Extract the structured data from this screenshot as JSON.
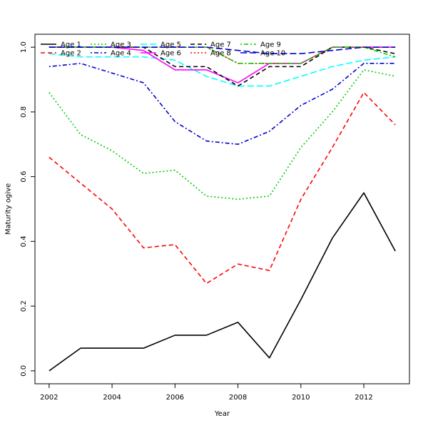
{
  "chart_data": {
    "type": "line",
    "title": "",
    "xlabel": "Year",
    "ylabel": "Maturity ogive",
    "xlim": [
      2001.55,
      2013.45
    ],
    "ylim": [
      -0.04,
      1.04
    ],
    "x_ticks": [
      2002,
      2004,
      2006,
      2008,
      2010,
      2012
    ],
    "y_ticks": [
      0.0,
      0.2,
      0.4,
      0.6,
      0.8,
      1.0
    ],
    "x_tick_labels": [
      "2002",
      "2004",
      "2006",
      "2008",
      "2010",
      "2012"
    ],
    "y_tick_labels": [
      "0.0",
      "0.2",
      "0.4",
      "0.6",
      "0.8",
      "1.0"
    ],
    "legend_placement": "top-left",
    "x": [
      2002,
      2003,
      2004,
      2005,
      2006,
      2007,
      2008,
      2009,
      2010,
      2011,
      2012,
      2013
    ],
    "series": [
      {
        "name": "Age 1",
        "color": "#000000",
        "dash": "solid",
        "values": [
          0.0,
          0.07,
          0.07,
          0.07,
          0.11,
          0.11,
          0.15,
          0.04,
          0.22,
          0.41,
          0.55,
          0.37
        ]
      },
      {
        "name": "Age 2",
        "color": "#ff0000",
        "dash": "dashed",
        "values": [
          0.66,
          0.58,
          0.5,
          0.38,
          0.39,
          0.27,
          0.33,
          0.31,
          0.53,
          0.69,
          0.86,
          0.76
        ]
      },
      {
        "name": "Age 3",
        "color": "#00cd00",
        "dash": "dotted",
        "values": [
          0.86,
          0.73,
          0.68,
          0.61,
          0.62,
          0.54,
          0.53,
          0.54,
          0.69,
          0.8,
          0.93,
          0.91
        ]
      },
      {
        "name": "Age 4",
        "color": "#0000cd",
        "dash": "dotdash",
        "values": [
          0.94,
          0.95,
          0.92,
          0.89,
          0.77,
          0.71,
          0.7,
          0.74,
          0.82,
          0.87,
          0.95,
          0.95
        ]
      },
      {
        "name": "Age 5",
        "color": "#00ffff",
        "dash": "longdash",
        "values": [
          0.98,
          0.97,
          0.97,
          0.97,
          0.96,
          0.91,
          0.88,
          0.88,
          0.91,
          0.94,
          0.96,
          0.97
        ]
      },
      {
        "name": "Age 6",
        "color": "#ff00ff",
        "dash": "solid",
        "values": [
          1.0,
          1.0,
          1.0,
          0.99,
          0.93,
          0.93,
          0.89,
          0.95,
          0.95,
          1.0,
          1.0,
          1.0
        ]
      },
      {
        "name": "Age 7",
        "color": "#000000",
        "dash": "dashed",
        "values": [
          1.0,
          1.0,
          1.0,
          1.0,
          0.94,
          0.94,
          0.88,
          0.94,
          0.94,
          1.0,
          1.0,
          0.98
        ]
      },
      {
        "name": "Age 8",
        "color": "#ff0000",
        "dash": "dotted",
        "values": [
          1.0,
          1.0,
          1.0,
          1.0,
          1.0,
          1.0,
          0.95,
          0.95,
          0.95,
          1.0,
          1.0,
          1.0
        ]
      },
      {
        "name": "Age 9",
        "color": "#00cd00",
        "dash": "dotdash",
        "values": [
          1.0,
          1.0,
          1.0,
          1.0,
          1.0,
          1.0,
          0.95,
          0.95,
          0.95,
          1.0,
          1.0,
          0.97
        ]
      },
      {
        "name": "Age 10",
        "color": "#0000cd",
        "dash": "longdash",
        "values": [
          1.0,
          1.0,
          1.0,
          1.0,
          1.0,
          1.0,
          0.99,
          0.98,
          0.98,
          0.99,
          1.0,
          1.0
        ]
      }
    ]
  }
}
